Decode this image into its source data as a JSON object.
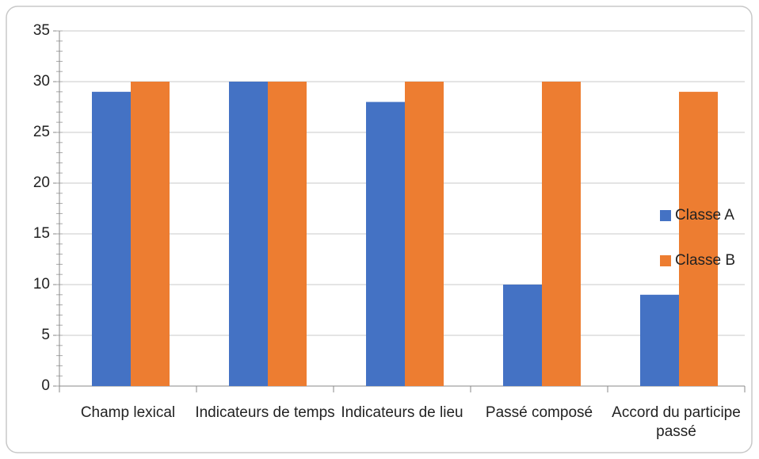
{
  "chart_data": {
    "type": "bar",
    "categories": [
      "Champ lexical",
      "Indicateurs de temps",
      "Indicateurs de lieu",
      "Passé composé",
      "Accord du participe passé"
    ],
    "series": [
      {
        "name": "Classe A",
        "color": "#4472c4",
        "values": [
          29,
          30,
          28,
          10,
          9
        ]
      },
      {
        "name": "Classe B",
        "color": "#ed7d31",
        "values": [
          30,
          30,
          30,
          30,
          29
        ]
      }
    ],
    "ylim": [
      0,
      35
    ],
    "yticks": [
      0,
      5,
      10,
      15,
      20,
      25,
      30,
      35
    ],
    "grid": true,
    "legend": "right"
  }
}
